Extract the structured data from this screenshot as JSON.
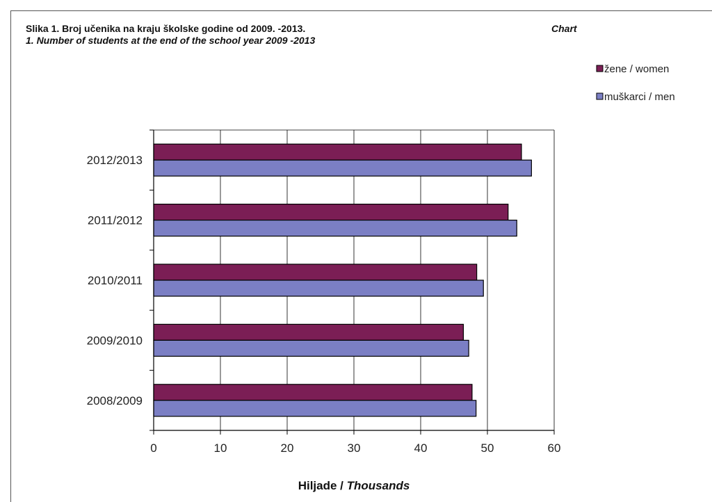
{
  "header": {
    "title_local": "Slika 1. Broj učenika na kraju školske godine od 2009. -2013.",
    "title_en": "1. Number of students at the end of the school year 2009 -2013",
    "chart_word": "Chart"
  },
  "colors": {
    "women": "#7b1e55",
    "men": "#7b7fc4",
    "gridline": "#000000",
    "bar_border": "#000000"
  },
  "chart_data": {
    "type": "bar",
    "orientation": "horizontal",
    "categories": [
      "2008/2009",
      "2009/2010",
      "2010/2011",
      "2011/2012",
      "2012/2013"
    ],
    "series": [
      {
        "name": "žene / women",
        "values": [
          47.7,
          46.4,
          48.4,
          53.1,
          55.1
        ]
      },
      {
        "name": "muškarci / men",
        "values": [
          48.3,
          47.2,
          49.4,
          54.4,
          56.6
        ]
      }
    ],
    "xlabel_bold": "Hiljade / ",
    "xlabel_italic": "Thousands",
    "xlim": [
      0,
      60
    ],
    "xticks": [
      0,
      10,
      20,
      30,
      40,
      50,
      60
    ],
    "grid": "vertical",
    "legend_position": "top-right"
  }
}
